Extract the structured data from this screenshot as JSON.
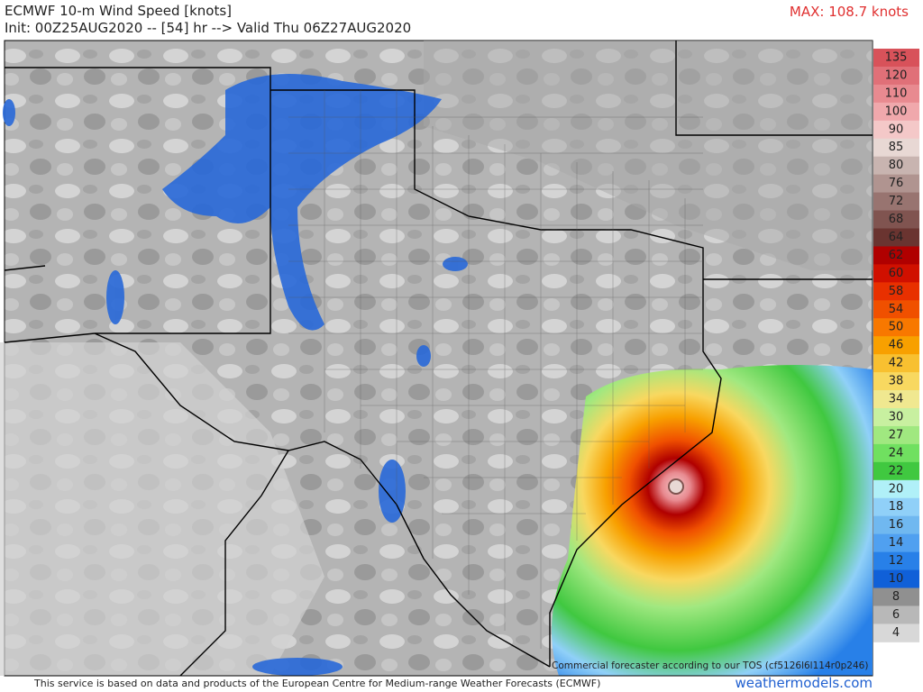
{
  "header": {
    "title": "ECMWF 10-m Wind Speed [knots]",
    "subtitle": "Init: 00Z25AUG2020 -- [54] hr --> Valid Thu 06Z27AUG2020",
    "max": "MAX: 108.7 knots"
  },
  "colorbar": {
    "levels": [
      135,
      120,
      110,
      100,
      90,
      85,
      80,
      76,
      72,
      68,
      64,
      62,
      60,
      58,
      54,
      50,
      46,
      42,
      38,
      34,
      30,
      27,
      24,
      22,
      20,
      18,
      16,
      14,
      12,
      10,
      8,
      6,
      4
    ],
    "colors": [
      "#d8525a",
      "#e07078",
      "#e88a90",
      "#f0a8ac",
      "#f4c8c8",
      "#e8d8d4",
      "#c8b4b0",
      "#b09490",
      "#987470",
      "#805450",
      "#6a3430",
      "#b00000",
      "#d01000",
      "#e83000",
      "#f05000",
      "#f87800",
      "#f8a000",
      "#f8c030",
      "#f8d860",
      "#f0e890",
      "#c8f0a0",
      "#a0e880",
      "#70e060",
      "#40c840",
      "#b0f0f8",
      "#90d0f8",
      "#70b8f0",
      "#50a0f0",
      "#2880e8",
      "#1060d8",
      "#909090",
      "#b8b8b8",
      "#d8d8d8"
    ]
  },
  "footer": {
    "credit": "This service is based on data and products of the European Centre for Medium-range Weather Forecasts (ECMWF)",
    "watermark": "weathermodels.com",
    "tos": "Commercial forecaster according to our TOS (cf5126l6l114r0p246)"
  }
}
